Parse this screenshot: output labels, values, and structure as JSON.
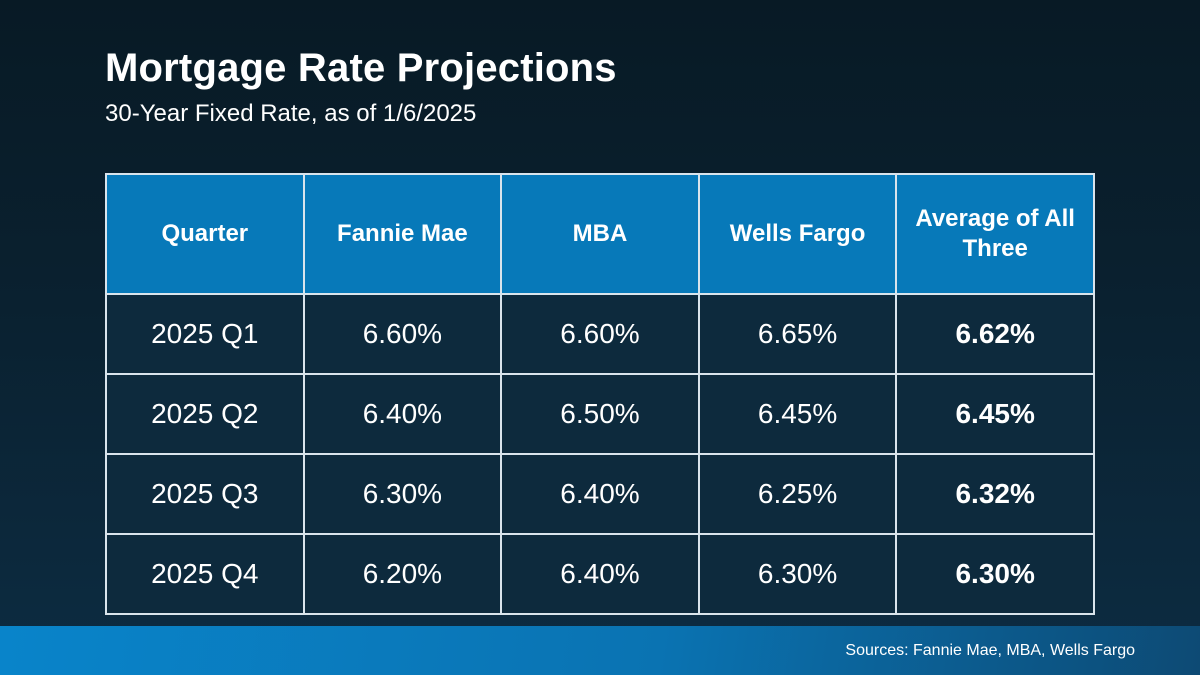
{
  "slide": {
    "title": "Mortgage Rate Projections",
    "subtitle": "30-Year Fixed Rate, as of 1/6/2025",
    "footer_sources": "Sources: Fannie Mae, MBA, Wells Fargo"
  },
  "chart_data": {
    "type": "table",
    "title": "Mortgage Rate Projections",
    "subtitle": "30-Year Fixed Rate, as of 1/6/2025",
    "columns": [
      "Quarter",
      "Fannie Mae",
      "MBA",
      "Wells Fargo",
      "Average of All Three"
    ],
    "rows": [
      [
        "2025 Q1",
        "6.60%",
        "6.60%",
        "6.65%",
        "6.62%"
      ],
      [
        "2025 Q2",
        "6.40%",
        "6.50%",
        "6.45%",
        "6.45%"
      ],
      [
        "2025 Q3",
        "6.30%",
        "6.40%",
        "6.25%",
        "6.32%"
      ],
      [
        "2025 Q4",
        "6.20%",
        "6.40%",
        "6.30%",
        "6.30%"
      ]
    ],
    "layout_hints": {
      "header_style": "blue background, bold white text",
      "last_column_bold": true,
      "grid": "white 2px borders"
    }
  },
  "colors": {
    "background_top": "#081a25",
    "background_bottom": "#0d2c42",
    "header_blue": "#0779b9",
    "cell_navy": "#0d2a3d",
    "grid_border": "#d9e4ec",
    "footer_blue_left": "#0984ca",
    "footer_blue_right": "#0d4a74",
    "text": "#ffffff"
  }
}
